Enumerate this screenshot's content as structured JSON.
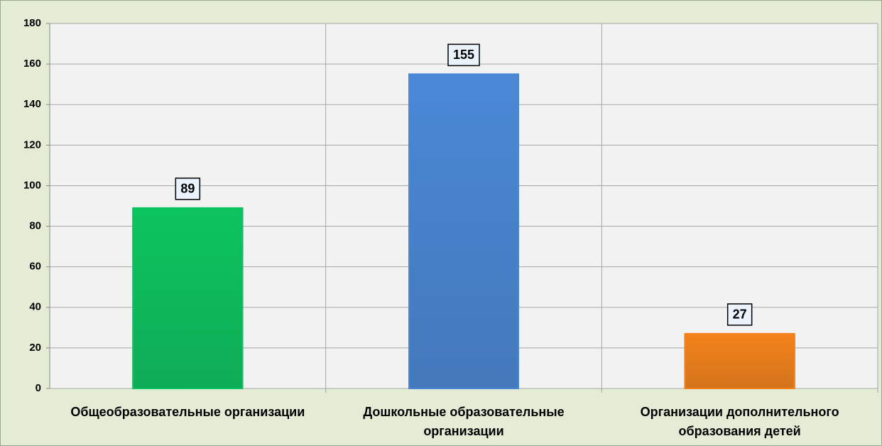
{
  "chart_data": {
    "type": "bar",
    "categories": [
      "Общеобразовательные организации",
      "Дошкольные образовательные организации",
      "Организации дополнительного образования детей"
    ],
    "values": [
      89,
      155,
      27
    ],
    "colors": [
      "#0cc45f",
      "#4a88d6",
      "#f3821a"
    ],
    "ylim": [
      0,
      180
    ],
    "yticks": [
      0,
      20,
      40,
      60,
      80,
      100,
      120,
      140,
      160,
      180
    ],
    "grid": true
  }
}
